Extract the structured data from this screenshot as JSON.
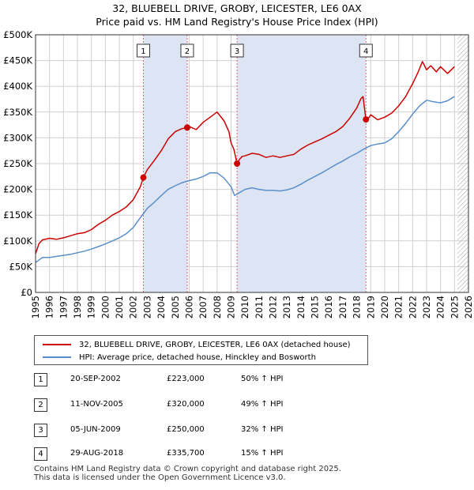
{
  "title": {
    "line1": "32, BLUEBELL DRIVE, GROBY, LEICESTER, LE6 0AX",
    "line2": "Price paid vs. HM Land Registry's House Price Index (HPI)"
  },
  "colors": {
    "property": "#cc0000",
    "hpi": "#5b8fc9",
    "shade": "#dde5f5",
    "grid": "#d0d0d0",
    "marker_line": "#e06666",
    "hatch": "#a0a0a0"
  },
  "chart_data": {
    "type": "line",
    "x_range": [
      1995,
      2026
    ],
    "ylim": [
      0,
      500000
    ],
    "y_ticks": [
      0,
      50000,
      100000,
      150000,
      200000,
      250000,
      300000,
      350000,
      400000,
      450000,
      500000
    ],
    "y_tick_labels": [
      "£0",
      "£50K",
      "£100K",
      "£150K",
      "£200K",
      "£250K",
      "£300K",
      "£350K",
      "£400K",
      "£450K",
      "£500K"
    ],
    "x_ticks": [
      1995,
      1996,
      1997,
      1998,
      1999,
      2000,
      2001,
      2002,
      2003,
      2004,
      2005,
      2006,
      2007,
      2008,
      2009,
      2010,
      2011,
      2012,
      2013,
      2014,
      2015,
      2016,
      2017,
      2018,
      2019,
      2020,
      2021,
      2022,
      2023,
      2024,
      2025,
      2026
    ],
    "grid": true,
    "series": [
      {
        "name": "32, BLUEBELL DRIVE, GROBY, LEICESTER, LE6 0AX (detached house)",
        "color": "#cc0000",
        "x": [
          1995.0,
          1995.25,
          1995.5,
          1996.0,
          1996.5,
          1997.0,
          1997.5,
          1998.0,
          1998.5,
          1999.0,
          1999.5,
          2000.0,
          2000.5,
          2001.0,
          2001.5,
          2002.0,
          2002.5,
          2002.72,
          2003.0,
          2003.5,
          2004.0,
          2004.5,
          2005.0,
          2005.5,
          2005.86,
          2006.0,
          2006.5,
          2007.0,
          2007.5,
          2008.0,
          2008.5,
          2008.85,
          2009.0,
          2009.2,
          2009.43,
          2009.6,
          2009.8,
          2010.0,
          2010.5,
          2011.0,
          2011.5,
          2012.0,
          2012.5,
          2013.0,
          2013.5,
          2014.0,
          2014.5,
          2015.0,
          2015.5,
          2016.0,
          2016.5,
          2017.0,
          2017.5,
          2018.0,
          2018.3,
          2018.45,
          2018.66,
          2018.9,
          2019.0,
          2019.5,
          2020.0,
          2020.5,
          2021.0,
          2021.5,
          2022.0,
          2022.4,
          2022.7,
          2023.0,
          2023.3,
          2023.7,
          2024.0,
          2024.5,
          2025.0
        ],
        "y": [
          75000,
          95000,
          102000,
          105000,
          103000,
          106000,
          110000,
          114000,
          116000,
          122000,
          132000,
          140000,
          150000,
          157000,
          166000,
          180000,
          205000,
          223000,
          238000,
          256000,
          275000,
          298000,
          312000,
          318000,
          320000,
          322000,
          316000,
          330000,
          340000,
          350000,
          333000,
          312000,
          290000,
          278000,
          250000,
          258000,
          264000,
          265000,
          270000,
          268000,
          262000,
          265000,
          262000,
          265000,
          268000,
          278000,
          286000,
          292000,
          298000,
          305000,
          312000,
          322000,
          338000,
          358000,
          376000,
          380000,
          335700,
          340000,
          345000,
          335000,
          340000,
          348000,
          362000,
          380000,
          405000,
          428000,
          448000,
          432000,
          440000,
          428000,
          438000,
          425000,
          438000
        ]
      },
      {
        "name": "HPI: Average price, detached house, Hinckley and Bosworth",
        "color": "#5b8fc9",
        "x": [
          1995.0,
          1995.5,
          1996.0,
          1996.5,
          1997.0,
          1997.5,
          1998.0,
          1998.5,
          1999.0,
          1999.5,
          2000.0,
          2000.5,
          2001.0,
          2001.5,
          2002.0,
          2002.5,
          2003.0,
          2003.5,
          2004.0,
          2004.5,
          2005.0,
          2005.5,
          2006.0,
          2006.5,
          2007.0,
          2007.5,
          2008.0,
          2008.5,
          2009.0,
          2009.25,
          2009.5,
          2010.0,
          2010.5,
          2011.0,
          2011.5,
          2012.0,
          2012.5,
          2013.0,
          2013.5,
          2014.0,
          2014.5,
          2015.0,
          2015.5,
          2016.0,
          2016.5,
          2017.0,
          2017.5,
          2018.0,
          2018.5,
          2019.0,
          2019.5,
          2020.0,
          2020.5,
          2021.0,
          2021.5,
          2022.0,
          2022.5,
          2023.0,
          2023.5,
          2024.0,
          2024.5,
          2025.0
        ],
        "y": [
          58000,
          68000,
          68000,
          70000,
          72000,
          74000,
          77000,
          80000,
          84000,
          89000,
          94000,
          100000,
          106000,
          114000,
          126000,
          145000,
          163000,
          175000,
          188000,
          200000,
          207000,
          213000,
          217000,
          220000,
          225000,
          232000,
          232000,
          222000,
          205000,
          188000,
          192000,
          200000,
          203000,
          200000,
          198000,
          198000,
          197000,
          199000,
          203000,
          210000,
          218000,
          225000,
          232000,
          240000,
          248000,
          255000,
          263000,
          270000,
          278000,
          285000,
          288000,
          290000,
          298000,
          312000,
          328000,
          346000,
          362000,
          373000,
          370000,
          368000,
          372000,
          380000
        ]
      }
    ],
    "sales": [
      {
        "num": "1",
        "x": 2002.72,
        "y": 223000
      },
      {
        "num": "2",
        "x": 2005.86,
        "y": 320000
      },
      {
        "num": "3",
        "x": 2009.43,
        "y": 250000
      },
      {
        "num": "4",
        "x": 2018.66,
        "y": 335700
      }
    ],
    "shaded_spans": [
      [
        2002.72,
        2005.86
      ],
      [
        2009.43,
        2018.66
      ]
    ],
    "future_hatch_from": 2025.2
  },
  "legend": {
    "property_label": "32, BLUEBELL DRIVE, GROBY, LEICESTER, LE6 0AX (detached house)",
    "hpi_label": "HPI: Average price, detached house, Hinckley and Bosworth"
  },
  "transactions": [
    {
      "num": "1",
      "date": "20-SEP-2002",
      "price": "£223,000",
      "hpi": "50% ↑ HPI"
    },
    {
      "num": "2",
      "date": "11-NOV-2005",
      "price": "£320,000",
      "hpi": "49% ↑ HPI"
    },
    {
      "num": "3",
      "date": "05-JUN-2009",
      "price": "£250,000",
      "hpi": "32% ↑ HPI"
    },
    {
      "num": "4",
      "date": "29-AUG-2018",
      "price": "£335,700",
      "hpi": "15% ↑ HPI"
    }
  ],
  "footer": {
    "line1": "Contains HM Land Registry data © Crown copyright and database right 2025.",
    "line2": "This data is licensed under the Open Government Licence v3.0."
  }
}
